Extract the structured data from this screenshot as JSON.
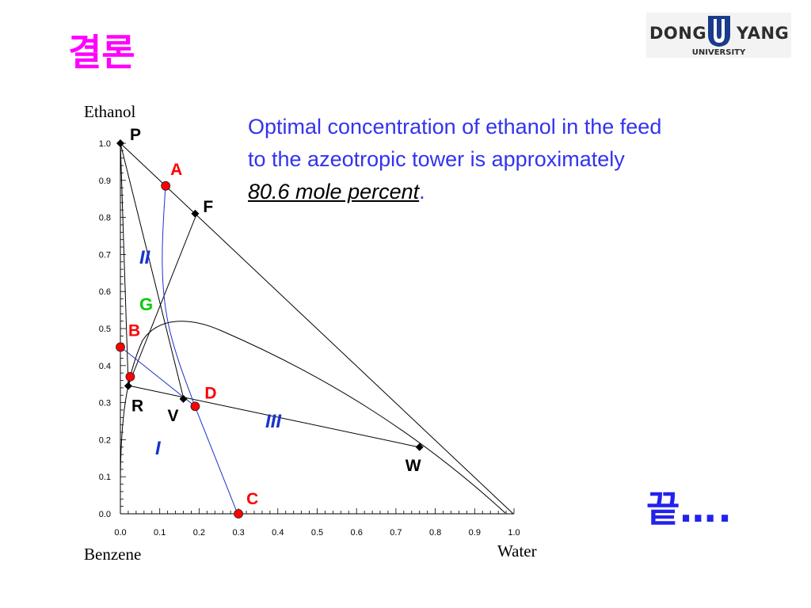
{
  "slide": {
    "title": "결론",
    "title_color": "#ff00ff"
  },
  "logo": {
    "left_word": "DONG",
    "right_word": "YANG",
    "subtitle": "UNIVERSITY",
    "shield_color": "#1a3a8c"
  },
  "conclusion": {
    "line1": "Optimal concentration of ethanol in the feed",
    "line2": "to the azeotropic tower is approximately",
    "value": "80.6 mole percent",
    "period": ".",
    "color": "#3333ee"
  },
  "ending": {
    "word": "끝",
    "dots": "…."
  },
  "diagram": {
    "corner_labels": {
      "top": "Ethanol",
      "bottom_left": "Benzene",
      "bottom_right": "Water"
    },
    "x_ticks": [
      "0.0",
      "0.1",
      "0.2",
      "0.3",
      "0.4",
      "0.5",
      "0.6",
      "0.7",
      "0.8",
      "0.9",
      "1.0"
    ],
    "y_ticks": [
      "0.0",
      "0.1",
      "0.2",
      "0.3",
      "0.4",
      "0.5",
      "0.6",
      "0.7",
      "0.8",
      "0.9",
      "1.0"
    ],
    "colors": {
      "red_point": "#ff0000",
      "blue_line": "#1a33cc",
      "green_label": "#00cc00",
      "axis": "#000000"
    },
    "points": [
      {
        "label": "P",
        "x": 0.0,
        "y": 1.0,
        "marker": "diamond",
        "label_color": "#000000"
      },
      {
        "label": "F",
        "x": 0.19,
        "y": 0.81,
        "marker": "diamond",
        "label_color": "#000000"
      },
      {
        "label": "R",
        "x": 0.02,
        "y": 0.345,
        "marker": "diamond",
        "label_color": "#000000"
      },
      {
        "label": "V",
        "x": 0.16,
        "y": 0.31,
        "marker": "diamond",
        "label_color": "#000000"
      },
      {
        "label": "W",
        "x": 0.76,
        "y": 0.18,
        "marker": "diamond",
        "label_color": "#000000"
      },
      {
        "label": "A",
        "x": 0.115,
        "y": 0.885,
        "marker": "dot",
        "label_color": "#ff0000"
      },
      {
        "label": "B",
        "x": 0.0,
        "y": 0.45,
        "marker": "dot",
        "label_color": "#ff0000"
      },
      {
        "label": "",
        "x": 0.025,
        "y": 0.37,
        "marker": "dot",
        "label_color": "#ff0000"
      },
      {
        "label": "D",
        "x": 0.19,
        "y": 0.29,
        "marker": "dot",
        "label_color": "#ff0000"
      },
      {
        "label": "C",
        "x": 0.3,
        "y": 0.0,
        "marker": "dot",
        "label_color": "#ff0000"
      }
    ],
    "region_labels": [
      {
        "text": "II",
        "color": "#1a33cc"
      },
      {
        "text": "G",
        "color": "#00cc00"
      },
      {
        "text": "III",
        "color": "#1a33cc"
      },
      {
        "text": "I",
        "color": "#1a33cc"
      }
    ]
  }
}
